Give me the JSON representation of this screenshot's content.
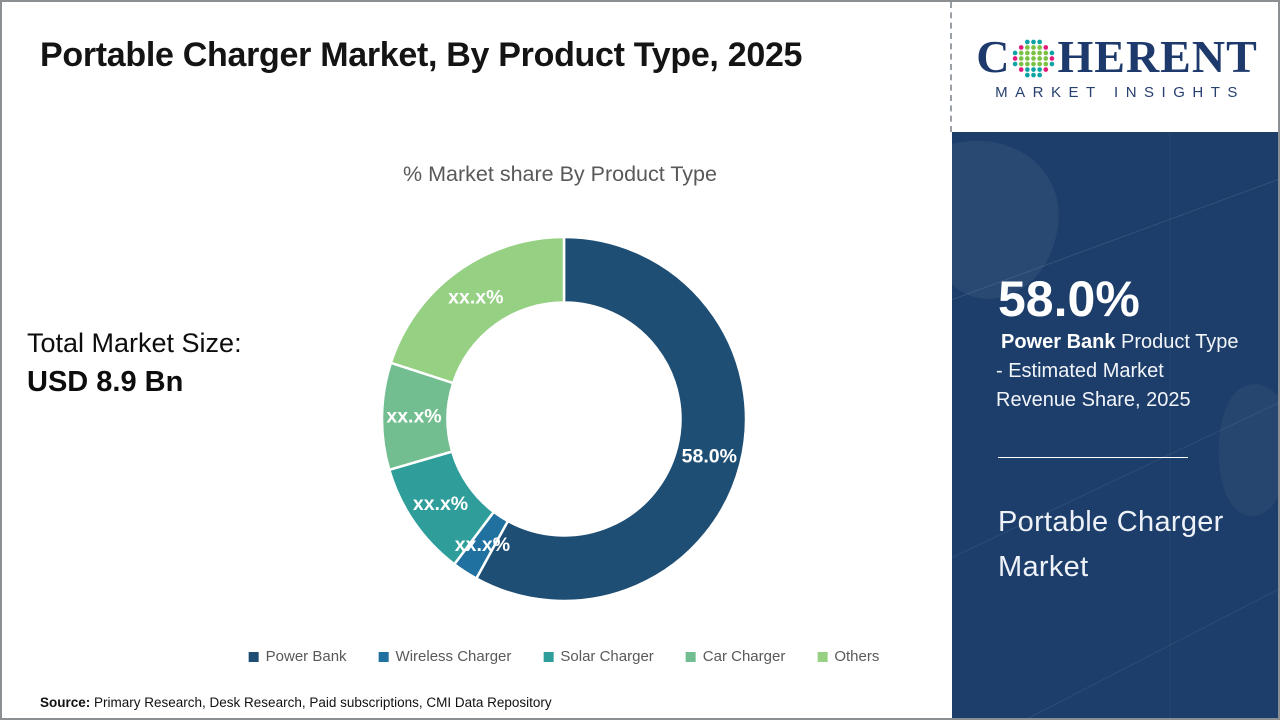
{
  "header": {
    "title": "Portable Charger Market, By Product Type, 2025",
    "logo": {
      "brand_c": "C",
      "brand_rest": "HERENT",
      "tagline": "MARKET INSIGHTS",
      "brand_color": "#1e3a6d",
      "globe_dot_colors": {
        "teal": "#0ba3a5",
        "green": "#7bc143",
        "magenta": "#e31c79"
      }
    }
  },
  "main": {
    "total_market": {
      "label": "Total Market Size:",
      "value": "USD 8.9 Bn"
    }
  },
  "chart_data": {
    "type": "pie",
    "subtype": "donut",
    "title": "% Market share By Product Type",
    "legend_position": "bottom",
    "start_angle_deg": 0,
    "clockwise": true,
    "inner_radius_ratio": 0.64,
    "series": [
      {
        "name": "Power Bank",
        "display_label": "58.0%",
        "value": 58.0,
        "color": "#1f4e74"
      },
      {
        "name": "Wireless Charger",
        "display_label": "xx.x%",
        "value": 2.3,
        "color": "#20719f"
      },
      {
        "name": "Solar Charger",
        "display_label": "xx.x%",
        "value": 10.2,
        "color": "#2f9e9b"
      },
      {
        "name": "Car Charger",
        "display_label": "xx.x%",
        "value": 9.5,
        "color": "#72be90"
      },
      {
        "name": "Others",
        "display_label": "xx.x%",
        "value": 20.0,
        "color": "#95d083"
      }
    ]
  },
  "sidebar": {
    "background_color": "#1d3e6a",
    "stat_value": "58.0%",
    "stat_bold": "Power Bank",
    "stat_line1_rest": " Product Type",
    "stat_line2": "- Estimated Market",
    "stat_line3": "Revenue Share, 2025",
    "market_name": "Portable Charger Market"
  },
  "footer": {
    "source_label": "Source:",
    "source_text": " Primary Research, Desk Research, Paid subscriptions, CMI Data Repository"
  }
}
